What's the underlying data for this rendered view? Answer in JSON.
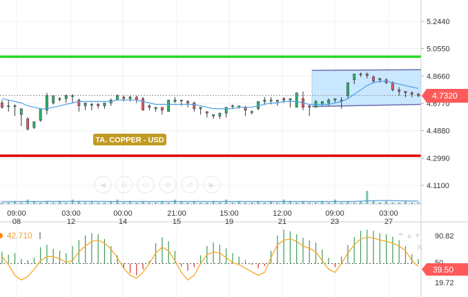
{
  "chart_data": [
    {
      "type": "candlestick",
      "title": "",
      "watermark_label": "TA. COPPER - USD",
      "last_price_label": "4.7320",
      "last_price": 4.732,
      "y_ticks": [
        "5.2440",
        "5.0550",
        "4.8660",
        "4.6770",
        "4.4880",
        "4.2990",
        "4.1100"
      ],
      "ylim": [
        3.99,
        5.42
      ],
      "x_ticks": [
        {
          "time": "09:00",
          "date": "08"
        },
        {
          "time": "03:00",
          "date": "12"
        },
        {
          "time": "00:00",
          "date": "14"
        },
        {
          "time": "21:00",
          "date": "15"
        },
        {
          "time": "15:00",
          "date": "19"
        },
        {
          "time": "12:00",
          "date": "21"
        },
        {
          "time": "09:00",
          "date": "23"
        },
        {
          "time": "03:00",
          "date": "27"
        }
      ],
      "horizontal_lines": [
        {
          "value": 5.0,
          "color": "#22dd22"
        },
        {
          "value": 4.315,
          "color": "#dd0000"
        }
      ],
      "channel": {
        "upper": [
          4.905,
          4.91
        ],
        "lower": [
          4.655,
          4.67
        ],
        "fill": "#bfe3ff",
        "stroke": "#6b6bb0"
      },
      "candles": [
        [
          4.68,
          4.7,
          4.65,
          4.64
        ],
        [
          4.66,
          4.7,
          4.66,
          4.62
        ],
        [
          4.66,
          4.67,
          4.66,
          4.59
        ],
        [
          4.6,
          4.62,
          4.64,
          4.52
        ],
        [
          4.57,
          4.58,
          4.5,
          4.49
        ],
        [
          4.51,
          4.54,
          4.55,
          4.5
        ],
        [
          4.56,
          4.58,
          4.64,
          4.55
        ],
        [
          4.63,
          4.75,
          4.73,
          4.6
        ],
        [
          4.68,
          4.7,
          4.73,
          4.67
        ],
        [
          4.71,
          4.72,
          4.71,
          4.69
        ],
        [
          4.71,
          4.74,
          4.73,
          4.68
        ],
        [
          4.73,
          4.74,
          4.73,
          4.68
        ],
        [
          4.7,
          4.71,
          4.66,
          4.62
        ],
        [
          4.66,
          4.67,
          4.68,
          4.63
        ],
        [
          4.67,
          4.68,
          4.67,
          4.63
        ],
        [
          4.67,
          4.68,
          4.66,
          4.64
        ],
        [
          4.66,
          4.68,
          4.68,
          4.64
        ],
        [
          4.68,
          4.71,
          4.7,
          4.66
        ],
        [
          4.7,
          4.74,
          4.73,
          4.7
        ],
        [
          4.72,
          4.73,
          4.71,
          4.69
        ],
        [
          4.71,
          4.73,
          4.72,
          4.69
        ],
        [
          4.72,
          4.73,
          4.7,
          4.68
        ],
        [
          4.71,
          4.72,
          4.63,
          4.63
        ],
        [
          4.66,
          4.67,
          4.65,
          4.63
        ],
        [
          4.64,
          4.65,
          4.65,
          4.62
        ],
        [
          4.65,
          4.65,
          4.63,
          4.6
        ],
        [
          4.62,
          4.63,
          4.7,
          4.62
        ],
        [
          4.69,
          4.72,
          4.7,
          4.68
        ],
        [
          4.7,
          4.7,
          4.7,
          4.66
        ],
        [
          4.69,
          4.7,
          4.68,
          4.65
        ],
        [
          4.68,
          4.69,
          4.64,
          4.62
        ],
        [
          4.64,
          4.64,
          4.65,
          4.6
        ],
        [
          4.62,
          4.62,
          4.61,
          4.58
        ],
        [
          4.59,
          4.6,
          4.6,
          4.57
        ],
        [
          4.59,
          4.6,
          4.61,
          4.57
        ],
        [
          4.61,
          4.65,
          4.65,
          4.58
        ],
        [
          4.66,
          4.67,
          4.66,
          4.64
        ],
        [
          4.65,
          4.66,
          4.66,
          4.64
        ],
        [
          4.65,
          4.66,
          4.63,
          4.59
        ],
        [
          4.62,
          4.63,
          4.62,
          4.6
        ],
        [
          4.64,
          4.65,
          4.69,
          4.63
        ],
        [
          4.69,
          4.72,
          4.7,
          4.67
        ],
        [
          4.7,
          4.72,
          4.7,
          4.67
        ],
        [
          4.69,
          4.69,
          4.7,
          4.66
        ],
        [
          4.71,
          4.72,
          4.7,
          4.68
        ],
        [
          4.7,
          4.71,
          4.71,
          4.65
        ],
        [
          4.65,
          4.66,
          4.75,
          4.65
        ],
        [
          4.71,
          4.76,
          4.65,
          4.63
        ],
        [
          4.66,
          4.67,
          4.65,
          4.59
        ],
        [
          4.65,
          4.7,
          4.69,
          4.65
        ],
        [
          4.67,
          4.69,
          4.69,
          4.66
        ],
        [
          4.68,
          4.71,
          4.7,
          4.66
        ],
        [
          4.7,
          4.71,
          4.71,
          4.68
        ],
        [
          4.7,
          4.72,
          4.7,
          4.64
        ],
        [
          4.73,
          4.78,
          4.82,
          4.71
        ],
        [
          4.84,
          4.87,
          4.88,
          4.81
        ],
        [
          4.88,
          4.89,
          4.88,
          4.86
        ],
        [
          4.88,
          4.89,
          4.87,
          4.85
        ],
        [
          4.86,
          4.87,
          4.83,
          4.82
        ],
        [
          4.84,
          4.85,
          4.85,
          4.82
        ],
        [
          4.84,
          4.85,
          4.82,
          4.81
        ],
        [
          4.82,
          4.83,
          4.77,
          4.76
        ],
        [
          4.77,
          4.79,
          4.76,
          4.73
        ],
        [
          4.76,
          4.76,
          4.75,
          4.72
        ],
        [
          4.75,
          4.76,
          4.74,
          4.72
        ],
        [
          4.74,
          4.75,
          4.73,
          4.72
        ]
      ],
      "moving_average": [
        4.71,
        4.7,
        4.69,
        4.68,
        4.66,
        4.65,
        4.64,
        4.64,
        4.65,
        4.66,
        4.67,
        4.68,
        4.69,
        4.69,
        4.69,
        4.69,
        4.69,
        4.69,
        4.7,
        4.7,
        4.7,
        4.7,
        4.69,
        4.68,
        4.67,
        4.67,
        4.67,
        4.67,
        4.67,
        4.67,
        4.67,
        4.66,
        4.65,
        4.64,
        4.64,
        4.64,
        4.64,
        4.65,
        4.65,
        4.65,
        4.66,
        4.67,
        4.68,
        4.68,
        4.69,
        4.69,
        4.69,
        4.68,
        4.67,
        4.67,
        4.67,
        4.67,
        4.68,
        4.69,
        4.71,
        4.74,
        4.77,
        4.8,
        4.82,
        4.83,
        4.83,
        4.82,
        4.81,
        4.8,
        4.79,
        4.78
      ],
      "volume": [
        1,
        1,
        2,
        1,
        3,
        2,
        1,
        2,
        1,
        2,
        1,
        3,
        2,
        1,
        2,
        1,
        1,
        2,
        3,
        1,
        2,
        1,
        2,
        1,
        1,
        2,
        1,
        3,
        2,
        1,
        2,
        1,
        1,
        2,
        1,
        3,
        1,
        2,
        1,
        1,
        2,
        1,
        2,
        1,
        3,
        2,
        1,
        2,
        1,
        1,
        2,
        1,
        3,
        1,
        2,
        1,
        2,
        9,
        2,
        1,
        2,
        1,
        1,
        2,
        1,
        1
      ],
      "volume_average": [
        1.5,
        1.5,
        1.5,
        1.6,
        1.6,
        1.6,
        1.6,
        1.7,
        1.7,
        1.7,
        1.7,
        1.7,
        1.7,
        1.7,
        1.7,
        1.7,
        1.7,
        1.6,
        1.6,
        1.6,
        1.6,
        1.6,
        1.6,
        1.6,
        1.6,
        1.6,
        1.6,
        1.6,
        1.6,
        1.6,
        1.6,
        1.6,
        1.6,
        1.6,
        1.6,
        1.6,
        1.6,
        1.6,
        1.6,
        1.6,
        1.6,
        1.6,
        1.6,
        1.6,
        1.6,
        1.6,
        1.6,
        1.6,
        1.6,
        1.6,
        1.6,
        1.6,
        1.6,
        1.6,
        1.6,
        1.7,
        1.9,
        2.1,
        2.3,
        2.4,
        2.4,
        2.3,
        2.2,
        2.1,
        2.0,
        1.9
      ]
    },
    {
      "type": "oscillator",
      "indicator_value_label": "42.710",
      "right_value_label": "39.50",
      "y_ticks": [
        "90.82",
        "50",
        "19.72"
      ],
      "ylim": [
        0,
        100
      ],
      "midline": 50,
      "series_line": [
        62,
        48,
        30,
        22,
        28,
        40,
        55,
        62,
        62,
        58,
        52,
        55,
        70,
        80,
        88,
        90,
        85,
        75,
        60,
        42,
        30,
        25,
        35,
        50,
        68,
        78,
        72,
        55,
        35,
        22,
        30,
        50,
        65,
        70,
        68,
        60,
        52,
        48,
        42,
        36,
        30,
        35,
        60,
        82,
        90,
        92,
        88,
        80,
        76,
        70,
        55,
        40,
        35,
        50,
        68,
        82,
        92,
        95,
        94,
        90,
        88,
        85,
        80,
        72,
        55,
        45
      ],
      "histogram": [
        20,
        15,
        18,
        8,
        6,
        10,
        28,
        32,
        25,
        22,
        18,
        30,
        40,
        48,
        52,
        50,
        42,
        30,
        14,
        -8,
        -16,
        -20,
        -10,
        5,
        35,
        45,
        38,
        22,
        -5,
        -12,
        -6,
        14,
        30,
        36,
        32,
        26,
        18,
        12,
        6,
        -2,
        -8,
        -4,
        22,
        48,
        58,
        55,
        50,
        44,
        40,
        36,
        24,
        10,
        -6,
        12,
        32,
        45,
        56,
        58,
        56,
        52,
        50,
        46,
        40,
        30,
        16,
        8
      ]
    }
  ]
}
